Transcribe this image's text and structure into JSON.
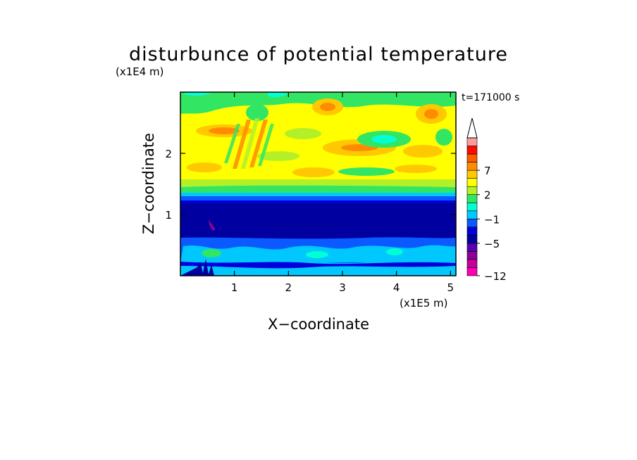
{
  "chart_data": {
    "type": "heatmap",
    "title": "disturbunce of potential temperature",
    "time_label": "t=171000 s",
    "xlabel": "X−coordinate",
    "ylabel": "Z−coordinate",
    "x_unit": "(x1E5 m)",
    "y_unit": "(x1E4 m)",
    "x_ticks": [
      {
        "value": 1,
        "label": "1"
      },
      {
        "value": 2,
        "label": "2"
      },
      {
        "value": 3,
        "label": "3"
      },
      {
        "value": 4,
        "label": "4"
      },
      {
        "value": 5,
        "label": "5"
      }
    ],
    "y_ticks": [
      {
        "value": 1,
        "label": "1"
      },
      {
        "value": 2,
        "label": "2"
      }
    ],
    "xlim": [
      0,
      5.1
    ],
    "ylim": [
      0,
      3.0
    ],
    "colorbar": {
      "levels": [
        -12,
        -10,
        -8,
        -6.5,
        -5,
        -3.5,
        -2,
        -1,
        0,
        1,
        2,
        3.5,
        5,
        7,
        9,
        11
      ],
      "colors": [
        "#ff00b4",
        "#c8009b",
        "#8c0096",
        "#5a00b4",
        "#0000a0",
        "#0000dc",
        "#0a5aff",
        "#00c8ff",
        "#00ffd2",
        "#32e664",
        "#b4f028",
        "#ffff00",
        "#ffc800",
        "#ff8c00",
        "#ff5a00",
        "#ff0a00",
        "#ff9b9b"
      ],
      "tick_labels": [
        {
          "value": 7,
          "label": "7"
        },
        {
          "value": 2,
          "label": "2"
        },
        {
          "value": -1,
          "label": "−1"
        },
        {
          "value": -5,
          "label": "−5"
        },
        {
          "value": -12,
          "label": "−12"
        }
      ],
      "extend_max": true
    },
    "field_summary": [
      {
        "z_range": [
          0.0,
          0.45
        ],
        "range": [
          -5,
          0
        ],
        "description": "turbulent near-surface layer"
      },
      {
        "z_range": [
          0.45,
          1.3
        ],
        "range": [
          -5,
          -3.5
        ],
        "description": "cold layer"
      },
      {
        "z_range": [
          1.3,
          1.5
        ],
        "range": [
          -2,
          1
        ],
        "description": "transition band"
      },
      {
        "z_range": [
          1.5,
          3.0
        ],
        "range": [
          0,
          5
        ],
        "description": "warm upper layer with wave structures"
      }
    ]
  }
}
